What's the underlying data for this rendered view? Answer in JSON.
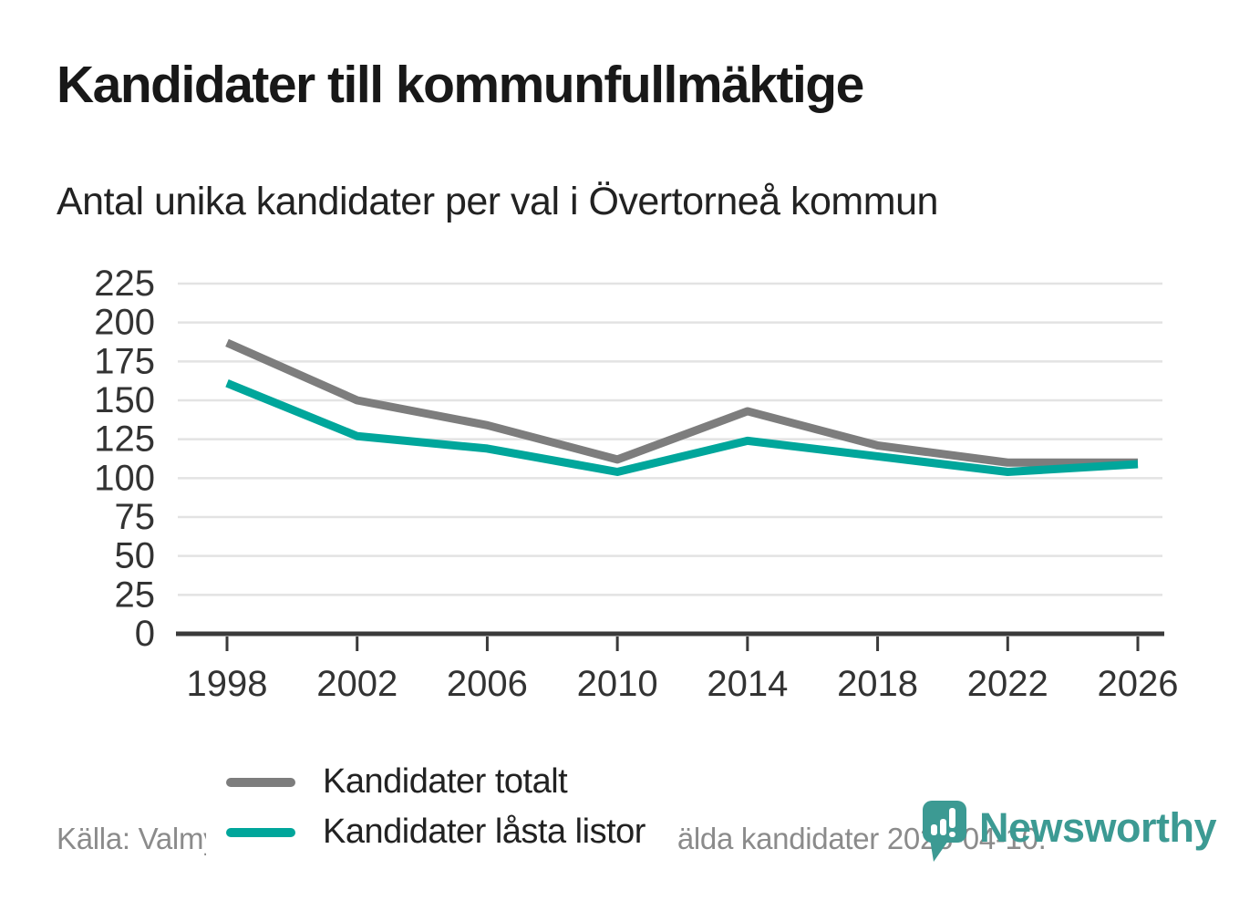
{
  "title": "Kandidater till kommunfullmäktige",
  "subtitle": "Antal unika kandidater per val i Övertorneå kommun",
  "footer": {
    "source_text": "Källa: Valmyndigheten. För 2026 gäller det anmälda kandidater 2026-04-10."
  },
  "branding": {
    "logo_text": "Newsworthy",
    "logo_color": "#3c9a93"
  },
  "colors": {
    "series_total": "#7d7d7d",
    "series_locked": "#00a69b",
    "grid": "#e3e3e3",
    "axis": "#3a3a3a"
  },
  "chart_data": {
    "type": "line",
    "categories": [
      "1998",
      "2002",
      "2006",
      "2010",
      "2014",
      "2018",
      "2022",
      "2026"
    ],
    "series": [
      {
        "name": "Kandidater totalt",
        "color": "#7d7d7d",
        "values": [
          187,
          150,
          134,
          112,
          143,
          121,
          110,
          110
        ]
      },
      {
        "name": "Kandidater låsta listor",
        "color": "#00a69b",
        "values": [
          161,
          127,
          119,
          104,
          124,
          114,
          104,
          109
        ]
      }
    ],
    "title": "Kandidater till kommunfullmäktige",
    "subtitle": "Antal unika kandidater per val i Övertorneå kommun",
    "xlabel": "",
    "ylabel": "",
    "ylim": [
      0,
      225
    ],
    "ytick_step": 25,
    "grid": "horizontal",
    "legend_position": "inside-bottom-left"
  }
}
